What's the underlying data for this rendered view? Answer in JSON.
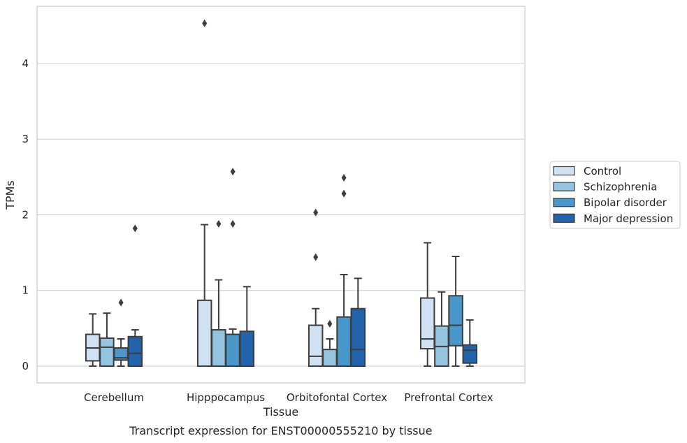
{
  "chart_data": {
    "type": "box",
    "caption": "Transcript expression for ENST00000555210 by tissue",
    "xlabel": "Tissue",
    "ylabel": "TPMs",
    "ylim": [
      -0.22,
      4.8
    ],
    "yticks": [
      0,
      1,
      2,
      3,
      4
    ],
    "grid": true,
    "legend_position": "right",
    "categories": [
      "Cerebellum",
      "Hipppocampus",
      "Orbitofontal Cortex",
      "Prefrontal Cortex"
    ],
    "series": [
      {
        "name": "Control",
        "color": "#d0e1f2",
        "boxes": [
          {
            "whisker_low": 0.0,
            "q1": 0.07,
            "median": 0.24,
            "q3": 0.42,
            "whisker_high": 0.69,
            "outliers": []
          },
          {
            "whisker_low": 0.0,
            "q1": 0.0,
            "median": 0.0,
            "q3": 0.87,
            "whisker_high": 1.87,
            "outliers": [
              4.53
            ]
          },
          {
            "whisker_low": 0.0,
            "q1": 0.0,
            "median": 0.13,
            "q3": 0.54,
            "whisker_high": 0.76,
            "outliers": [
              1.44,
              2.03
            ]
          },
          {
            "whisker_low": 0.0,
            "q1": 0.23,
            "median": 0.36,
            "q3": 0.9,
            "whisker_high": 1.63,
            "outliers": []
          }
        ]
      },
      {
        "name": "Schizophrenia",
        "color": "#94c4df",
        "boxes": [
          {
            "whisker_low": 0.0,
            "q1": 0.0,
            "median": 0.25,
            "q3": 0.37,
            "whisker_high": 0.7,
            "outliers": []
          },
          {
            "whisker_low": 0.0,
            "q1": 0.0,
            "median": 0.0,
            "q3": 0.48,
            "whisker_high": 1.14,
            "outliers": [
              1.88
            ]
          },
          {
            "whisker_low": 0.0,
            "q1": 0.0,
            "median": 0.0,
            "q3": 0.22,
            "whisker_high": 0.36,
            "outliers": [
              0.56
            ]
          },
          {
            "whisker_low": 0.0,
            "q1": 0.0,
            "median": 0.26,
            "q3": 0.53,
            "whisker_high": 0.98,
            "outliers": []
          }
        ]
      },
      {
        "name": "Bipolar disorder",
        "color": "#4a98c9",
        "boxes": [
          {
            "whisker_low": 0.0,
            "q1": 0.08,
            "median": 0.11,
            "q3": 0.24,
            "whisker_high": 0.36,
            "outliers": [
              0.84
            ]
          },
          {
            "whisker_low": 0.0,
            "q1": 0.0,
            "median": 0.0,
            "q3": 0.42,
            "whisker_high": 0.49,
            "outliers": [
              1.88,
              2.57
            ]
          },
          {
            "whisker_low": 0.0,
            "q1": 0.0,
            "median": 0.0,
            "q3": 0.65,
            "whisker_high": 1.21,
            "outliers": [
              2.28,
              2.49
            ]
          },
          {
            "whisker_low": 0.0,
            "q1": 0.27,
            "median": 0.54,
            "q3": 0.93,
            "whisker_high": 1.45,
            "outliers": []
          }
        ]
      },
      {
        "name": "Major depression",
        "color": "#2164ab",
        "boxes": [
          {
            "whisker_low": 0.0,
            "q1": 0.0,
            "median": 0.17,
            "q3": 0.39,
            "whisker_high": 0.48,
            "outliers": [
              1.82
            ]
          },
          {
            "whisker_low": 0.0,
            "q1": 0.0,
            "median": 0.0,
            "q3": 0.46,
            "whisker_high": 1.05,
            "outliers": []
          },
          {
            "whisker_low": 0.0,
            "q1": 0.0,
            "median": 0.22,
            "q3": 0.76,
            "whisker_high": 1.16,
            "outliers": []
          },
          {
            "whisker_low": 0.0,
            "q1": 0.04,
            "median": 0.21,
            "q3": 0.28,
            "whisker_high": 0.61,
            "outliers": []
          }
        ]
      }
    ]
  }
}
